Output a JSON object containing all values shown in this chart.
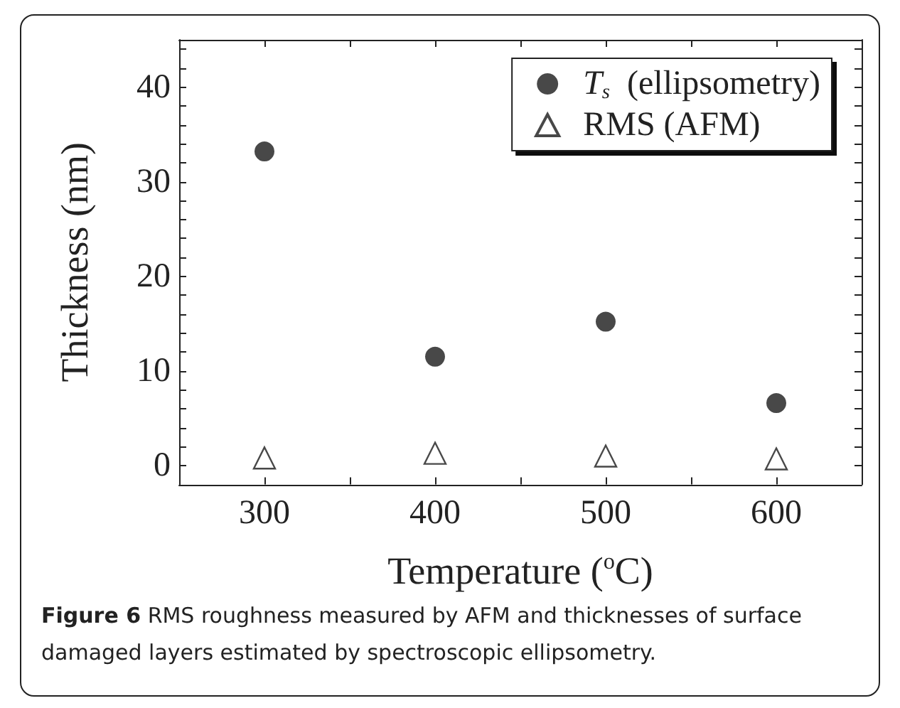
{
  "chart_data": {
    "type": "scatter",
    "xlabel": "Temperature ($^{o}$C)",
    "ylabel": "Thickness (nm)",
    "x": [
      300,
      400,
      500,
      600
    ],
    "series": [
      {
        "name": "T$_{s}$  (ellipsometry)",
        "color": "#1a1a1a",
        "marker": "circle",
        "values": [
          33.2,
          11.5,
          15.2,
          6.6
        ]
      },
      {
        "name": "RMS (AFM)",
        "color": "#1a1a1a",
        "marker": "triangle",
        "values": [
          0.8,
          1.3,
          1.0,
          0.7
        ]
      }
    ],
    "xlim": [
      250,
      650
    ],
    "xticks": [
      300,
      {
        "value": 350,
        "label": null
      },
      400,
      {
        "value": 450,
        "label": null
      },
      500,
      {
        "value": 550,
        "label": null
      },
      600
    ],
    "ylim": [
      -2,
      45
    ],
    "yticks": [
      0,
      {
        "value": 2,
        "label": null
      },
      {
        "value": 4,
        "label": null
      },
      {
        "value": 6,
        "label": null
      },
      {
        "value": 8,
        "label": null
      },
      10,
      {
        "value": 12,
        "label": null
      },
      {
        "value": 14,
        "label": null
      },
      {
        "value": 16,
        "label": null
      },
      {
        "value": 18,
        "label": null
      },
      20,
      {
        "value": 22,
        "label": null
      },
      {
        "value": 24,
        "label": null
      },
      {
        "value": 26,
        "label": null
      },
      {
        "value": 28,
        "label": null
      },
      30,
      {
        "value": 32,
        "label": null
      },
      {
        "value": 34,
        "label": null
      },
      {
        "value": 36,
        "label": null
      },
      {
        "value": 38,
        "label": null
      },
      40,
      {
        "value": 42,
        "label": null
      },
      {
        "value": 44,
        "label": null
      }
    ],
    "grid": false,
    "legend": "top right",
    "annotations": [
      "Figure 6 RMS roughness measured by AFM and thicknesses of surface damaged layers estimated by spectroscopic ellipsometry."
    ]
  }
}
